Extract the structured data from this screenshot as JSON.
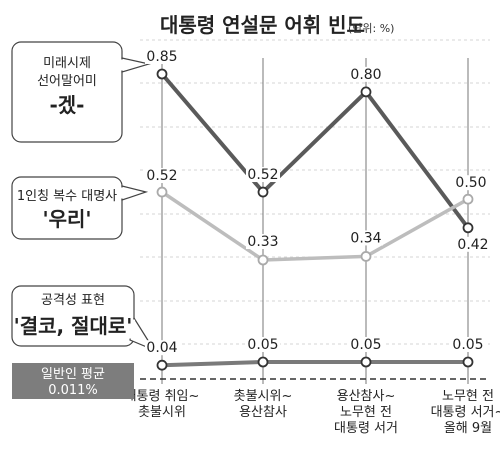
{
  "chart_data": {
    "type": "line",
    "title": "대통령 연설문 어휘 빈도",
    "unit": "(단위: %)",
    "categories": [
      [
        "대통령 취임~",
        "촛불시위"
      ],
      [
        "촛불시위~",
        "용산참사"
      ],
      [
        "용산참사~",
        "노무현 전",
        "대통령 서거"
      ],
      [
        "노무현 전",
        "대통령 서거~",
        "올해 9월"
      ]
    ],
    "series": [
      {
        "callout": [
          "미래시제",
          "선어말어미",
          "-겠-"
        ],
        "values": [
          0.85,
          0.52,
          0.8,
          0.42
        ],
        "labels": [
          "0.85",
          "0.52",
          "0.80",
          "0.42"
        ],
        "color": "#5a5a5a"
      },
      {
        "callout": [
          "1인칭 복수 대명사",
          "'우리'"
        ],
        "values": [
          0.52,
          0.33,
          0.34,
          0.5
        ],
        "labels": [
          "0.52",
          "0.33",
          "0.34",
          "0.50"
        ],
        "color": "#bdbdbd"
      },
      {
        "callout": [
          "공격성 표현",
          "'결코, 절대로'"
        ],
        "values": [
          0.04,
          0.05,
          0.05,
          0.05
        ],
        "labels": [
          "0.04",
          "0.05",
          "0.05",
          "0.05"
        ],
        "color": "#7a7a7a"
      }
    ],
    "average": {
      "lines": [
        "일반인 평균",
        "0.011%"
      ],
      "value": 0.011
    },
    "grid": true
  }
}
